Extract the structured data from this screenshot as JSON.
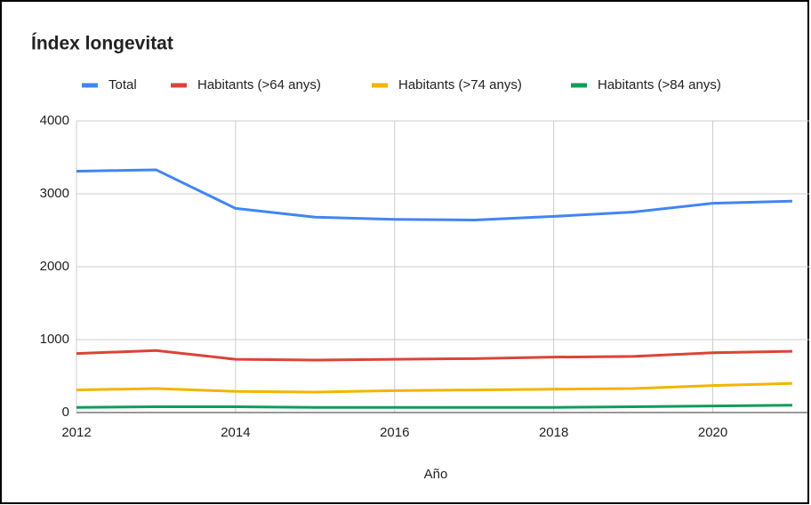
{
  "chart_data": {
    "type": "line",
    "title": "Índex longevitat",
    "x_label": "Año",
    "x": [
      2012,
      2013,
      2014,
      2015,
      2016,
      2017,
      2018,
      2019,
      2020,
      2021
    ],
    "series": [
      {
        "name": "Total",
        "color": "#4285f4",
        "values": [
          3310,
          3330,
          2800,
          2680,
          2650,
          2640,
          2690,
          2750,
          2870,
          2900
        ]
      },
      {
        "name": "Habitants (>64 anys)",
        "color": "#db4437",
        "values": [
          810,
          850,
          730,
          720,
          730,
          740,
          760,
          770,
          820,
          840
        ]
      },
      {
        "name": "Habitants (>74 anys)",
        "color": "#f4b400",
        "values": [
          310,
          330,
          290,
          280,
          300,
          310,
          320,
          330,
          370,
          400
        ]
      },
      {
        "name": "Habitants (>84 anys)",
        "color": "#0f9d58",
        "values": [
          70,
          80,
          80,
          70,
          70,
          70,
          70,
          80,
          90,
          100
        ]
      }
    ],
    "xlim": [
      2012,
      2021
    ],
    "xticks": [
      2012,
      2014,
      2016,
      2018,
      2020
    ],
    "ylim": [
      0,
      4000
    ],
    "yticks": [
      0,
      1000,
      2000,
      3000,
      4000
    ],
    "grid": true,
    "legend": "top"
  }
}
